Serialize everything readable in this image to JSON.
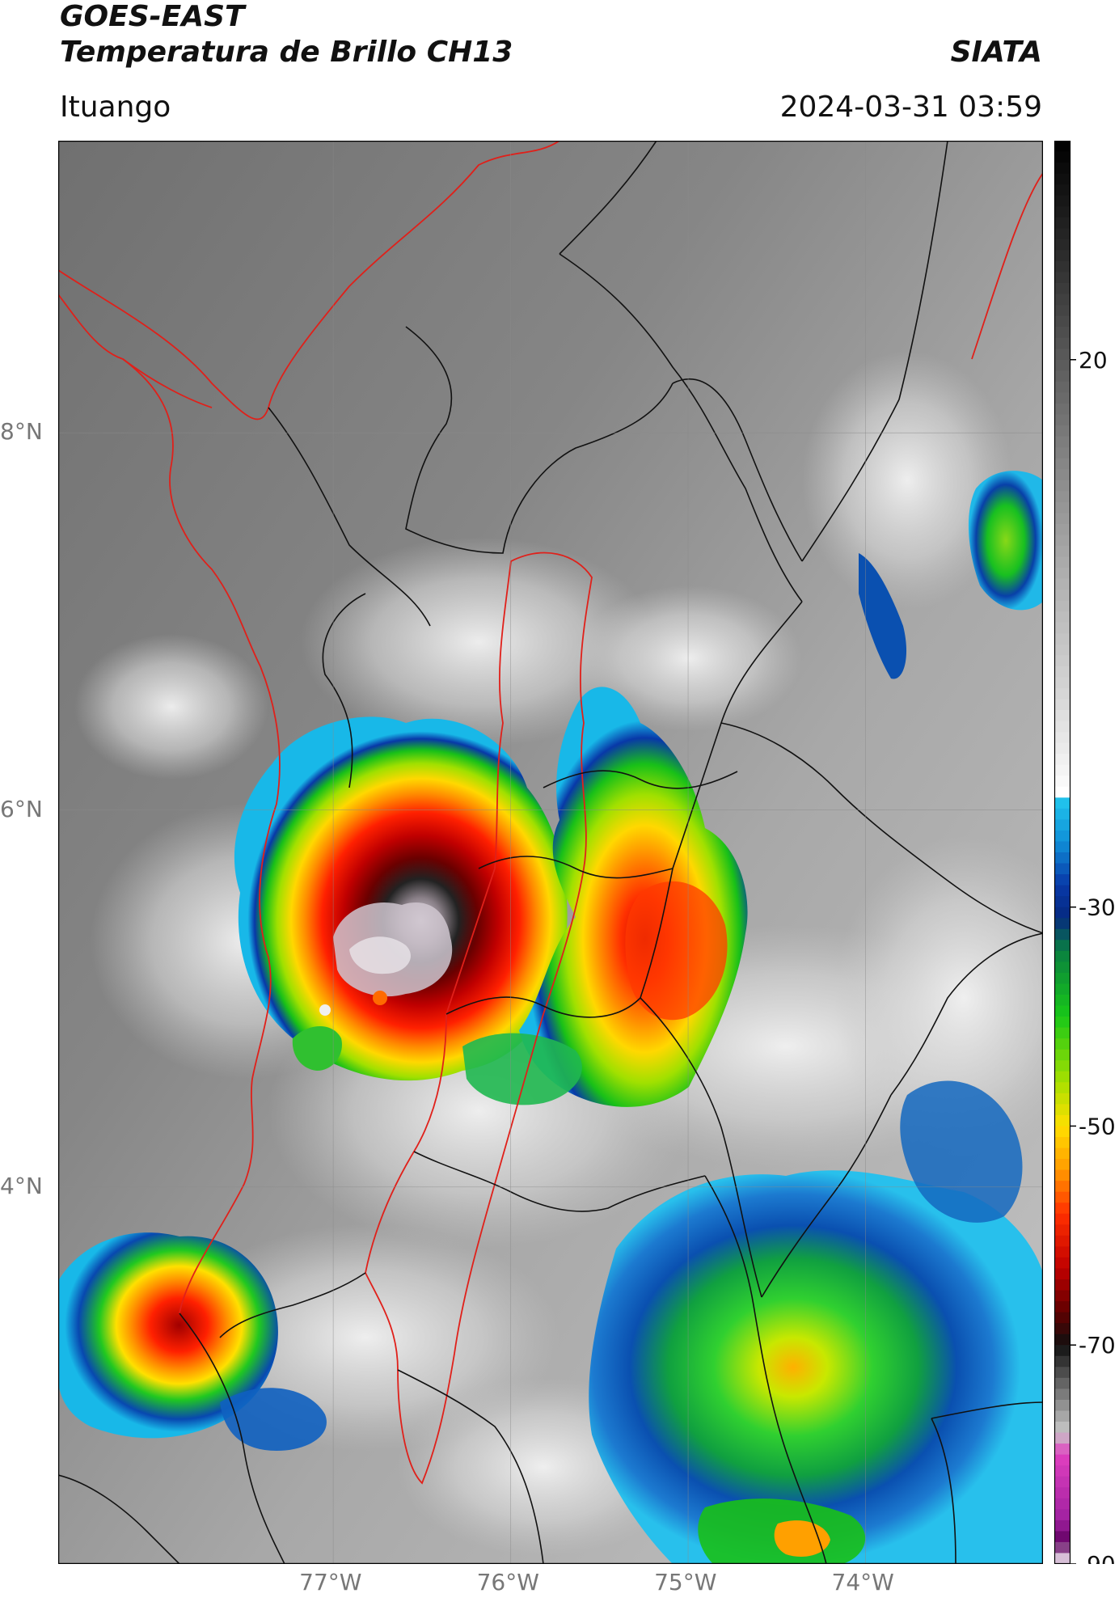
{
  "header": {
    "satellite": "GOES-EAST",
    "product": "Temperatura de Brillo CH13",
    "organization": "SIATA",
    "location": "Ituango",
    "datetime": "2024-03-31 03:59"
  },
  "map": {
    "lon_range": [
      -78.55,
      -73.0
    ],
    "lat_range": [
      2.0,
      9.55
    ],
    "lon_ticks": [
      {
        "value": -77,
        "label": "77°W"
      },
      {
        "value": -76,
        "label": "76°W"
      },
      {
        "value": -75,
        "label": "75°W"
      },
      {
        "value": -74,
        "label": "74°W"
      }
    ],
    "lat_ticks": [
      {
        "value": 8,
        "label": "8°N"
      },
      {
        "value": 6,
        "label": "6°N"
      },
      {
        "value": 4,
        "label": "4°N"
      }
    ],
    "gridlines": true,
    "boundary_colors": {
      "coast": "#e0201a",
      "departments": "#111111",
      "basin": "#e0201a"
    },
    "storm_cells": [
      {
        "id": "west-cell",
        "lon": -76.75,
        "lat": 5.05,
        "min_temp": -88
      },
      {
        "id": "central-cell",
        "lon": -75.05,
        "lat": 5.0,
        "min_temp": -65
      },
      {
        "id": "southwest-cell",
        "lon": -77.9,
        "lat": 3.05,
        "min_temp": -68
      },
      {
        "id": "southeast-cell",
        "lon": -74.25,
        "lat": 2.75,
        "min_temp": -50
      }
    ]
  },
  "colorbar": {
    "range": [
      -90,
      40
    ],
    "ticks": [
      {
        "value": 20,
        "label": "20"
      },
      {
        "value": -30,
        "label": "-30"
      },
      {
        "value": -50,
        "label": "-50"
      },
      {
        "value": -70,
        "label": "-70"
      },
      {
        "value": -90,
        "label": "-90"
      }
    ]
  }
}
